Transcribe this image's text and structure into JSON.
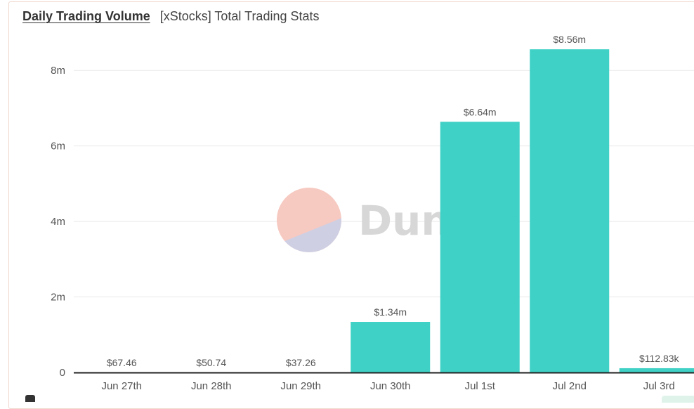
{
  "header": {
    "title": "Daily Trading Volume",
    "subtitle": "[xStocks] Total Trading Stats"
  },
  "watermark": {
    "text": "Dune"
  },
  "colors": {
    "bar": "#3fd1c5",
    "grid": "#e9e9e9",
    "axis": "#222222",
    "watermark_top": "#f6c9c1",
    "watermark_bottom": "#cfcfe3"
  },
  "chart_data": {
    "type": "bar",
    "categories": [
      "Jun 27th",
      "Jun 28th",
      "Jun 29th",
      "Jun 30th",
      "Jul 1st",
      "Jul 2nd",
      "Jul 3rd"
    ],
    "values": [
      67.46,
      50.74,
      37.26,
      1340000,
      6640000,
      8560000,
      112830
    ],
    "value_labels": [
      "$67.46",
      "$50.74",
      "$37.26",
      "$1.34m",
      "$6.64m",
      "$8.56m",
      "$112.83k"
    ],
    "ylim": [
      0,
      8600000
    ],
    "yticks": [
      0,
      2000000,
      4000000,
      6000000,
      8000000
    ],
    "ytick_labels": [
      "0",
      "2m",
      "4m",
      "6m",
      "8m"
    ],
    "grid": true
  }
}
